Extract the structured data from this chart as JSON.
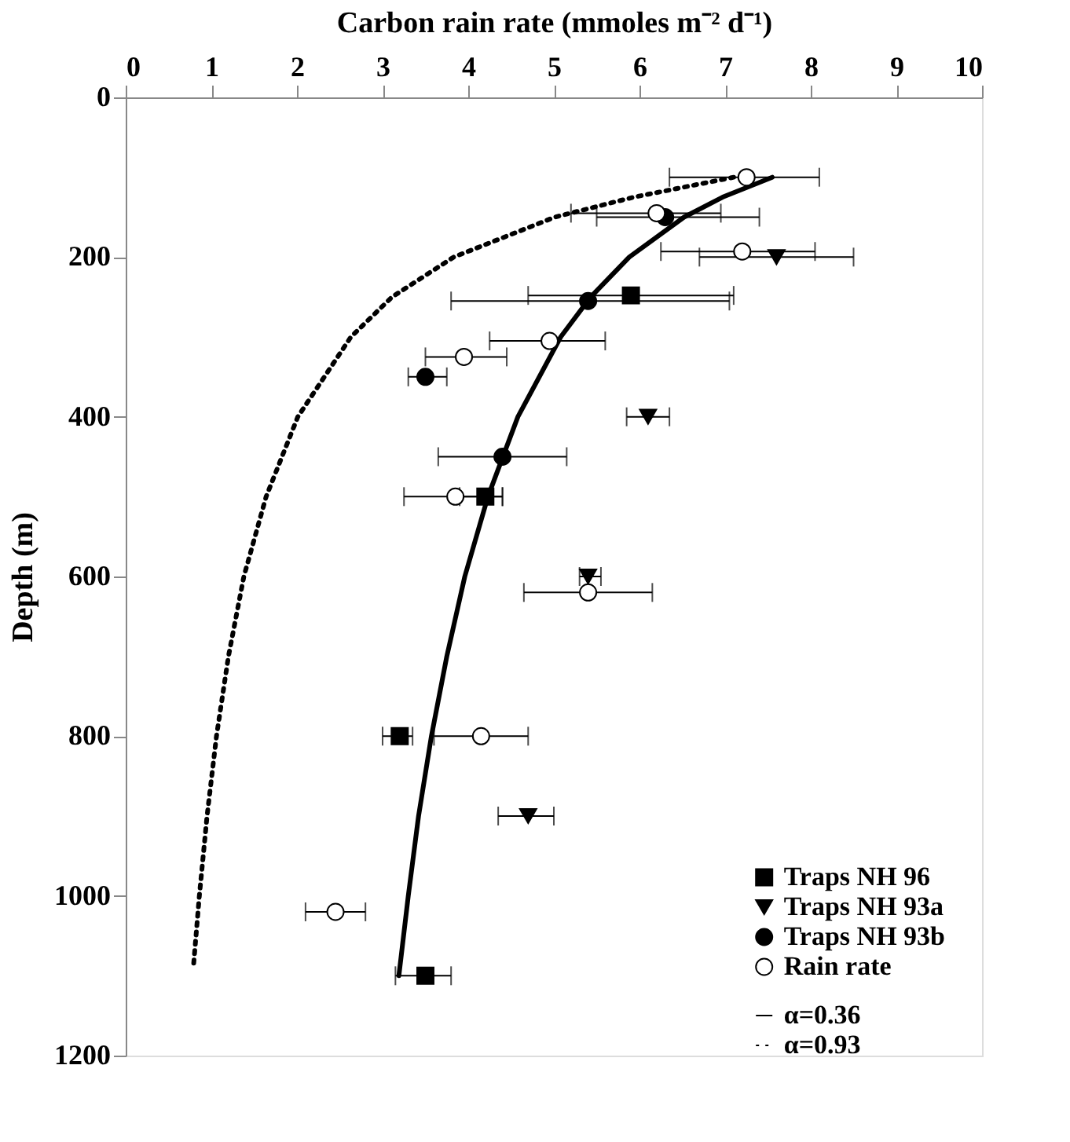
{
  "chart_data": {
    "type": "scatter",
    "xlabel": "Carbon rain rate (mmoles m⁻² d⁻¹)",
    "ylabel": "Depth (m)",
    "xlim": [
      0,
      10
    ],
    "xticks": [
      0,
      1,
      2,
      3,
      4,
      5,
      6,
      7,
      8,
      9,
      10
    ],
    "ylim": [
      1200,
      0
    ],
    "yticks": [
      0,
      200,
      400,
      600,
      800,
      1000,
      1200
    ],
    "grid": false,
    "legend": "bottom right",
    "series": [
      {
        "name": "Traps  NH 96",
        "type": "scatter",
        "marker": "square",
        "color": "#000000",
        "x": [
          5.9,
          4.2,
          3.2,
          3.5
        ],
        "values": [
          248,
          500,
          800,
          1100
        ],
        "xerrors": [
          [
            4.7,
            7.1
          ],
          [
            3.9,
            4.4
          ],
          [
            3.0,
            3.35
          ],
          [
            3.15,
            3.8
          ]
        ]
      },
      {
        "name": "Traps  NH 93a",
        "type": "scatter",
        "marker": "triangle",
        "color": "#000000",
        "x": [
          7.6,
          6.1,
          5.4,
          4.7
        ],
        "values": [
          200,
          400,
          600,
          900
        ],
        "xerrors": [
          [
            6.7,
            8.5
          ],
          [
            5.85,
            6.35
          ],
          [
            5.3,
            5.55
          ],
          [
            4.35,
            5.0
          ]
        ]
      },
      {
        "name": "Traps NH 93b",
        "type": "scatter",
        "marker": "circle",
        "color": "#000000",
        "x": [
          6.3,
          5.4,
          3.5,
          4.4
        ],
        "values": [
          150,
          255,
          350,
          450
        ],
        "xerrors": [
          [
            5.5,
            7.4
          ],
          [
            3.8,
            7.05
          ],
          [
            3.3,
            3.75
          ],
          [
            3.65,
            5.15
          ]
        ]
      },
      {
        "name": "Rain rate",
        "type": "scatter",
        "marker": "circle",
        "color": "#ffffff",
        "x": [
          7.25,
          6.2,
          7.2,
          4.95,
          3.95,
          3.85,
          5.4,
          4.15,
          2.45
        ],
        "values": [
          100,
          145,
          193,
          305,
          325,
          500,
          620,
          800,
          1020
        ],
        "xerrors": [
          [
            6.35,
            8.1
          ],
          [
            5.2,
            6.95
          ],
          [
            6.25,
            8.05
          ],
          [
            4.25,
            5.6
          ],
          [
            3.5,
            4.45
          ],
          [
            3.25,
            4.4
          ],
          [
            4.65,
            6.15
          ],
          [
            3.6,
            4.7
          ],
          [
            2.1,
            2.8
          ]
        ]
      },
      {
        "name": "α=0.36",
        "type": "line",
        "line_style": "solid",
        "color": "#000000",
        "x": [
          7.55,
          6.97,
          6.52,
          5.88,
          5.43,
          5.08,
          4.58,
          4.23,
          3.96,
          3.75,
          3.57,
          3.42,
          3.3,
          3.19
        ],
        "values": [
          100,
          125,
          150,
          200,
          250,
          300,
          400,
          500,
          600,
          700,
          800,
          900,
          1000,
          1100
        ]
      },
      {
        "name": "α=0.93",
        "type": "line",
        "line_style": "dotted",
        "color": "#000000",
        "x": [
          7.1,
          5.93,
          5.01,
          3.83,
          3.11,
          2.63,
          2.01,
          1.64,
          1.38,
          1.2,
          1.06,
          0.95,
          0.86,
          0.79
        ],
        "values": [
          100,
          125,
          150,
          200,
          250,
          300,
          400,
          500,
          600,
          700,
          800,
          900,
          1000,
          1090
        ]
      }
    ]
  }
}
